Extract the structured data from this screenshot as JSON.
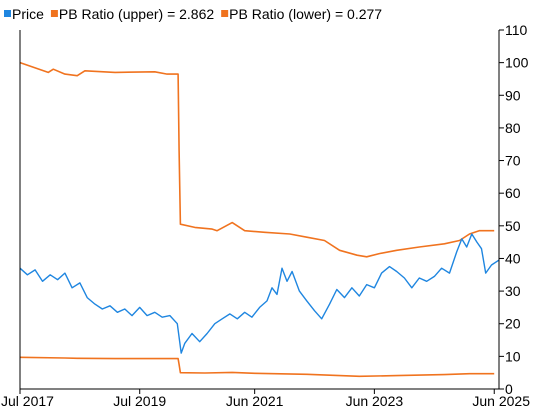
{
  "chart_data": {
    "type": "line",
    "title": "",
    "xlabel": "",
    "ylabel": "",
    "ylim": [
      0,
      110
    ],
    "xlim": [
      "2017-07-01",
      "2025-06-30"
    ],
    "y_axis_side": "right",
    "grid": false,
    "legend_position": "top-left",
    "x_tick_labels": [
      {
        "date": "2017-07-01",
        "label": "Jul 2017"
      },
      {
        "date": "2019-07-01",
        "label": "Jul 2019"
      },
      {
        "date": "2021-06-01",
        "label": "Jun 2021"
      },
      {
        "date": "2023-06-01",
        "label": "Jun 2023"
      },
      {
        "date": "2025-06-01",
        "label": "Jun 2025"
      }
    ],
    "y_ticks": [
      0,
      10,
      20,
      30,
      40,
      50,
      60,
      70,
      80,
      90,
      100,
      110
    ],
    "series": [
      {
        "name": "Price",
        "legend_label": "Price",
        "color": "#1f86e0",
        "points": [
          [
            "2017-07-01",
            37
          ],
          [
            "2017-08-15",
            35
          ],
          [
            "2017-10-01",
            36.5
          ],
          [
            "2017-11-15",
            33
          ],
          [
            "2018-01-01",
            35
          ],
          [
            "2018-02-15",
            33.5
          ],
          [
            "2018-04-01",
            35.5
          ],
          [
            "2018-05-15",
            31
          ],
          [
            "2018-07-01",
            32.5
          ],
          [
            "2018-08-15",
            28
          ],
          [
            "2018-10-01",
            26
          ],
          [
            "2018-11-15",
            24.5
          ],
          [
            "2019-01-01",
            25.5
          ],
          [
            "2019-02-15",
            23.5
          ],
          [
            "2019-04-01",
            24.5
          ],
          [
            "2019-05-15",
            22.5
          ],
          [
            "2019-07-01",
            25
          ],
          [
            "2019-08-15",
            22.5
          ],
          [
            "2019-10-01",
            23.5
          ],
          [
            "2019-11-15",
            22
          ],
          [
            "2020-01-01",
            22.5
          ],
          [
            "2020-02-15",
            20
          ],
          [
            "2020-03-10",
            11
          ],
          [
            "2020-04-01",
            14
          ],
          [
            "2020-05-15",
            17
          ],
          [
            "2020-07-01",
            14.5
          ],
          [
            "2020-08-15",
            17
          ],
          [
            "2020-10-01",
            20
          ],
          [
            "2020-11-15",
            21.5
          ],
          [
            "2021-01-01",
            23
          ],
          [
            "2021-02-15",
            21.5
          ],
          [
            "2021-04-01",
            23.5
          ],
          [
            "2021-05-15",
            22
          ],
          [
            "2021-07-01",
            25
          ],
          [
            "2021-08-15",
            27
          ],
          [
            "2021-09-15",
            31
          ],
          [
            "2021-10-15",
            29
          ],
          [
            "2021-11-15",
            37
          ],
          [
            "2021-12-15",
            33
          ],
          [
            "2022-01-15",
            36
          ],
          [
            "2022-03-01",
            30
          ],
          [
            "2022-04-15",
            27
          ],
          [
            "2022-06-01",
            24
          ],
          [
            "2022-07-15",
            21.5
          ],
          [
            "2022-09-01",
            26
          ],
          [
            "2022-10-15",
            30.5
          ],
          [
            "2022-12-01",
            28
          ],
          [
            "2023-01-15",
            31
          ],
          [
            "2023-03-01",
            28.5
          ],
          [
            "2023-04-15",
            32
          ],
          [
            "2023-06-01",
            31
          ],
          [
            "2023-07-15",
            35.5
          ],
          [
            "2023-09-01",
            37.5
          ],
          [
            "2023-10-15",
            36
          ],
          [
            "2023-12-01",
            34
          ],
          [
            "2024-01-15",
            31
          ],
          [
            "2024-03-01",
            34
          ],
          [
            "2024-04-15",
            33
          ],
          [
            "2024-06-01",
            34.5
          ],
          [
            "2024-07-15",
            37
          ],
          [
            "2024-09-01",
            35.5
          ],
          [
            "2024-10-15",
            42
          ],
          [
            "2024-11-15",
            46
          ],
          [
            "2024-12-15",
            43.5
          ],
          [
            "2025-01-15",
            47.5
          ],
          [
            "2025-02-15",
            45
          ],
          [
            "2025-03-15",
            43
          ],
          [
            "2025-04-10",
            35.5
          ],
          [
            "2025-05-15",
            38
          ],
          [
            "2025-06-30",
            39.5
          ]
        ]
      },
      {
        "name": "PB Ratio (upper)",
        "legend_label": "PB Ratio (upper) = 2.862",
        "color": "#f0731f",
        "points": [
          [
            "2017-07-01",
            100
          ],
          [
            "2017-12-20",
            97
          ],
          [
            "2018-01-20",
            98
          ],
          [
            "2018-04-01",
            96.5
          ],
          [
            "2018-06-15",
            96
          ],
          [
            "2018-08-01",
            97.5
          ],
          [
            "2019-02-01",
            97
          ],
          [
            "2019-10-01",
            97.2
          ],
          [
            "2019-12-15",
            96.5
          ],
          [
            "2020-02-20",
            96.5
          ],
          [
            "2020-02-26",
            73
          ],
          [
            "2020-03-05",
            50.5
          ],
          [
            "2020-06-01",
            49.5
          ],
          [
            "2020-09-15",
            49
          ],
          [
            "2020-10-15",
            48.5
          ],
          [
            "2021-01-15",
            51
          ],
          [
            "2021-04-01",
            48.5
          ],
          [
            "2021-08-01",
            48
          ],
          [
            "2022-01-01",
            47.5
          ],
          [
            "2022-04-15",
            46.5
          ],
          [
            "2022-08-01",
            45.5
          ],
          [
            "2022-11-01",
            42.5
          ],
          [
            "2023-02-15",
            41
          ],
          [
            "2023-04-15",
            40.5
          ],
          [
            "2023-07-01",
            41.5
          ],
          [
            "2023-10-15",
            42.5
          ],
          [
            "2024-03-01",
            43.5
          ],
          [
            "2024-08-01",
            44.5
          ],
          [
            "2024-11-01",
            45.5
          ],
          [
            "2025-01-01",
            47.5
          ],
          [
            "2025-03-01",
            48.5
          ],
          [
            "2025-06-01",
            48.5
          ]
        ]
      },
      {
        "name": "PB Ratio (lower)",
        "legend_label": "PB Ratio (lower) = 0.277",
        "color": "#f0731f",
        "points": [
          [
            "2017-07-01",
            9.7
          ],
          [
            "2018-04-01",
            9.5
          ],
          [
            "2018-06-15",
            9.4
          ],
          [
            "2019-02-01",
            9.3
          ],
          [
            "2020-02-20",
            9.3
          ],
          [
            "2020-02-26",
            7.5
          ],
          [
            "2020-03-05",
            5.0
          ],
          [
            "2020-08-01",
            4.9
          ],
          [
            "2021-01-15",
            5.1
          ],
          [
            "2021-06-01",
            4.8
          ],
          [
            "2022-04-15",
            4.5
          ],
          [
            "2022-11-01",
            4.1
          ],
          [
            "2023-03-01",
            3.9
          ],
          [
            "2023-10-15",
            4.1
          ],
          [
            "2024-08-01",
            4.4
          ],
          [
            "2025-01-01",
            4.7
          ],
          [
            "2025-06-01",
            4.7
          ]
        ]
      }
    ]
  }
}
